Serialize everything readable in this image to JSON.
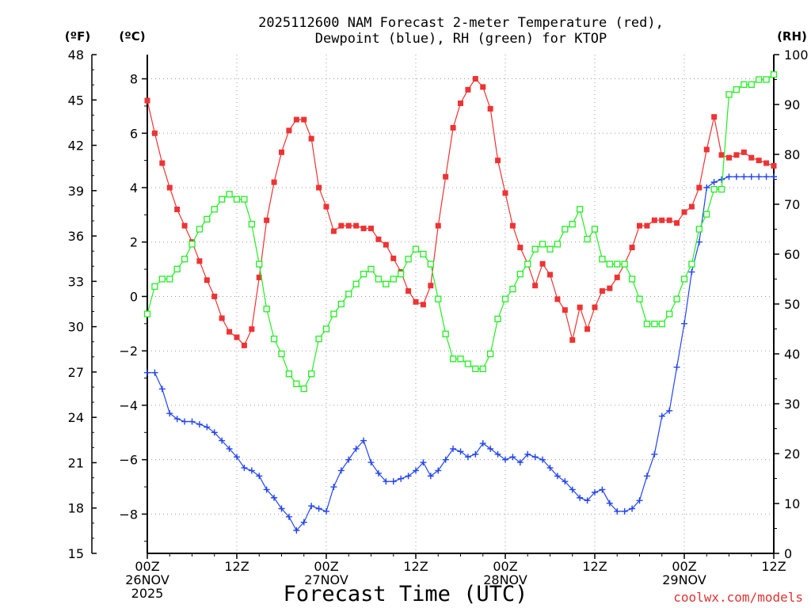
{
  "chart_data": {
    "type": "line",
    "title_line1": "2025112600 NAM Forecast 2-meter Temperature (red),",
    "title_line2": "Dewpoint (blue), RH (green) for KTOP",
    "xlabel": "Forecast Time (UTC)",
    "watermark": "coolwx.com/models",
    "left_outer_axis": {
      "label": "(ºF)",
      "ticks": [
        "15",
        "18",
        "21",
        "24",
        "27",
        "30",
        "33",
        "36",
        "39",
        "42",
        "45",
        "48"
      ],
      "ylim": [
        15,
        48
      ]
    },
    "left_inner_axis": {
      "label": "(ºC)",
      "ticks": [
        "-8",
        "-6",
        "-4",
        "-2",
        "0",
        "2",
        "4",
        "6",
        "8"
      ],
      "ylim": [
        -9.444,
        8.889
      ]
    },
    "right_axis": {
      "label": "(RH)",
      "ticks": [
        "0",
        "10",
        "20",
        "30",
        "40",
        "50",
        "60",
        "70",
        "80",
        "90",
        "100"
      ],
      "ylim": [
        0,
        100
      ]
    },
    "x_axis": {
      "xlim": [
        0,
        84
      ],
      "step_hours": 1,
      "ticks": [
        {
          "hour": 0,
          "lines": [
            "00Z",
            "26NOV",
            "2025"
          ]
        },
        {
          "hour": 12,
          "lines": [
            "12Z"
          ]
        },
        {
          "hour": 24,
          "lines": [
            "00Z",
            "27NOV"
          ]
        },
        {
          "hour": 36,
          "lines": [
            "12Z"
          ]
        },
        {
          "hour": 48,
          "lines": [
            "00Z",
            "28NOV"
          ]
        },
        {
          "hour": 60,
          "lines": [
            "12Z"
          ]
        },
        {
          "hour": 72,
          "lines": [
            "00Z",
            "29NOV"
          ]
        },
        {
          "hour": 84,
          "lines": [
            "12Z"
          ]
        }
      ]
    },
    "grid": true,
    "series": [
      {
        "name": "2-meter Temperature",
        "color": "#ee3333",
        "marker": "filled-square",
        "axis": "celsius",
        "values": [
          7.2,
          6.0,
          4.9,
          4.0,
          3.2,
          2.6,
          2.0,
          1.3,
          0.6,
          0.0,
          -0.8,
          -1.3,
          -1.5,
          -1.8,
          -1.2,
          0.7,
          2.8,
          4.2,
          5.3,
          6.1,
          6.5,
          6.5,
          5.8,
          4.0,
          3.3,
          2.4,
          2.6,
          2.6,
          2.6,
          2.5,
          2.5,
          2.1,
          1.9,
          1.4,
          0.9,
          0.2,
          -0.2,
          -0.3,
          0.4,
          2.6,
          4.4,
          6.2,
          7.1,
          7.6,
          8.0,
          7.7,
          6.9,
          5.0,
          3.8,
          2.6,
          1.8,
          1.2,
          0.4,
          1.2,
          0.8,
          -0.1,
          -0.5,
          -1.6,
          -0.4,
          -1.2,
          -0.4,
          0.2,
          0.3,
          0.7,
          1.2,
          1.8,
          2.6,
          2.6,
          2.8,
          2.8,
          2.8,
          2.7,
          3.1,
          3.3,
          4.0,
          5.4,
          6.6,
          5.2,
          5.1,
          5.2,
          5.3,
          5.1,
          5.0,
          4.9,
          4.8
        ]
      },
      {
        "name": "Dewpoint",
        "color": "#2244ee",
        "marker": "plus",
        "axis": "celsius",
        "values": [
          -2.8,
          -2.8,
          -3.4,
          -4.3,
          -4.5,
          -4.6,
          -4.6,
          -4.7,
          -4.8,
          -5.0,
          -5.3,
          -5.6,
          -5.9,
          -6.3,
          -6.4,
          -6.6,
          -7.1,
          -7.4,
          -7.8,
          -8.1,
          -8.6,
          -8.3,
          -7.7,
          -7.8,
          -7.9,
          -7.0,
          -6.4,
          -6.0,
          -5.6,
          -5.3,
          -6.1,
          -6.5,
          -6.8,
          -6.8,
          -6.7,
          -6.6,
          -6.4,
          -6.1,
          -6.6,
          -6.4,
          -6.0,
          -5.6,
          -5.7,
          -5.9,
          -5.8,
          -5.4,
          -5.6,
          -5.8,
          -6.0,
          -5.9,
          -6.1,
          -5.8,
          -5.9,
          -6.0,
          -6.3,
          -6.6,
          -6.8,
          -7.1,
          -7.4,
          -7.5,
          -7.2,
          -7.1,
          -7.6,
          -7.9,
          -7.9,
          -7.8,
          -7.5,
          -6.6,
          -5.8,
          -4.4,
          -4.2,
          -2.6,
          -1.0,
          0.9,
          2.0,
          4.0,
          4.2,
          4.3,
          4.4,
          4.4,
          4.4,
          4.4,
          4.4,
          4.4,
          4.4
        ]
      },
      {
        "name": "RH",
        "color": "#22ee22",
        "marker": "open-square",
        "axis": "rh",
        "values": [
          48,
          53.5,
          55,
          55,
          57,
          59,
          62,
          65,
          67,
          69,
          71,
          72,
          71,
          71,
          66,
          58,
          49,
          43,
          40,
          36,
          34,
          33,
          36,
          43,
          45,
          48,
          50,
          52,
          54,
          56,
          57,
          55,
          54,
          55,
          56,
          59,
          61,
          60,
          58,
          51,
          44,
          39,
          39,
          38,
          37,
          37,
          40,
          47,
          51,
          53,
          56,
          58,
          61,
          62,
          61,
          62,
          65,
          66,
          69,
          63,
          65,
          59,
          58,
          58,
          58,
          55,
          51,
          46,
          46,
          46,
          48,
          51,
          55,
          58,
          65,
          68,
          73,
          73,
          92,
          93,
          94,
          94,
          95,
          95,
          96
        ]
      }
    ]
  }
}
